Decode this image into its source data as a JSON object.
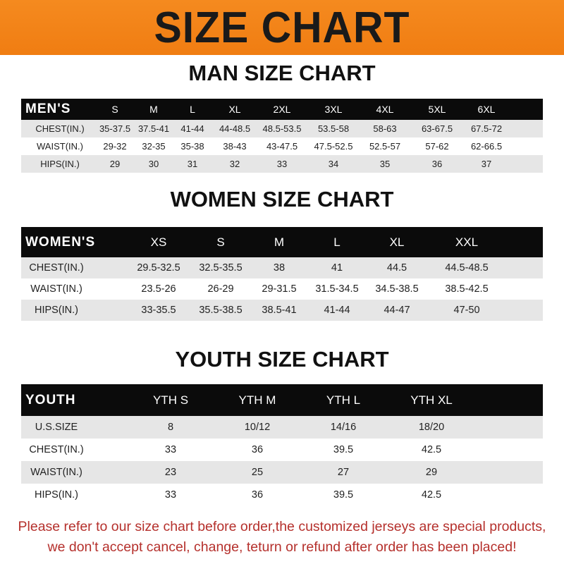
{
  "title": "SIZE CHART",
  "men": {
    "title": "MAN SIZE CHART",
    "header": [
      "MEN'S",
      "S",
      "M",
      "L",
      "XL",
      "2XL",
      "3XL",
      "4XL",
      "5XL",
      "6XL"
    ],
    "rows": [
      [
        "CHEST(IN.)",
        "35-37.5",
        "37.5-41",
        "41-44",
        "44-48.5",
        "48.5-53.5",
        "53.5-58",
        "58-63",
        "63-67.5",
        "67.5-72"
      ],
      [
        "WAIST(IN.)",
        "29-32",
        "32-35",
        "35-38",
        "38-43",
        "43-47.5",
        "47.5-52.5",
        "52.5-57",
        "57-62",
        "62-66.5"
      ],
      [
        "HIPS(IN.)",
        "29",
        "30",
        "31",
        "32",
        "33",
        "34",
        "35",
        "36",
        "37"
      ]
    ]
  },
  "women": {
    "title": "WOMEN SIZE CHART",
    "header": [
      "WOMEN'S",
      "XS",
      "S",
      "M",
      "L",
      "XL",
      "XXL"
    ],
    "rows": [
      [
        "CHEST(IN.)",
        "29.5-32.5",
        "32.5-35.5",
        "38",
        "41",
        "44.5",
        "44.5-48.5"
      ],
      [
        "WAIST(IN.)",
        "23.5-26",
        "26-29",
        "29-31.5",
        "31.5-34.5",
        "34.5-38.5",
        "38.5-42.5"
      ],
      [
        "HIPS(IN.)",
        "33-35.5",
        "35.5-38.5",
        "38.5-41",
        "41-44",
        "44-47",
        "47-50"
      ]
    ]
  },
  "youth": {
    "title": "YOUTH SIZE CHART",
    "header": [
      "YOUTH",
      "YTH S",
      "YTH M",
      "YTH L",
      "YTH XL"
    ],
    "rows": [
      [
        "U.S.SIZE",
        "8",
        "10/12",
        "14/16",
        "18/20"
      ],
      [
        "CHEST(IN.)",
        "33",
        "36",
        "39.5",
        "42.5"
      ],
      [
        "WAIST(IN.)",
        "23",
        "25",
        "27",
        "29"
      ],
      [
        "HIPS(IN.)",
        "33",
        "36",
        "39.5",
        "42.5"
      ]
    ]
  },
  "notice": {
    "line1": "Please refer to our size chart before order,the customized jerseys are special products,",
    "line2": "we don't accept cancel, change, teturn or refund after order has been placed!"
  },
  "colors": {
    "banner": "#f58a1f",
    "header_row": "#0b0b0b",
    "stripe": "#e6e6e6",
    "notice": "#b5302c"
  }
}
